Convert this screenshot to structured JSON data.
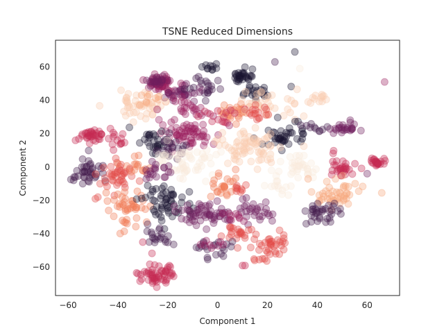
{
  "chart_data": {
    "type": "scatter",
    "title": "TSNE Reduced Dimensions",
    "xlabel": "Component 1",
    "ylabel": "Component 2",
    "xlim": [
      -65,
      73
    ],
    "ylim": [
      -77,
      76
    ],
    "xticks": [
      -60,
      -40,
      -20,
      0,
      20,
      40,
      60
    ],
    "yticks": [
      -60,
      -40,
      -20,
      0,
      20,
      40,
      60
    ],
    "grid": false,
    "legend": "none",
    "marker_opacity": 0.35,
    "colors": [
      "#1a1530",
      "#441e4e",
      "#6f1f5e",
      "#9c1f5e",
      "#c72a52",
      "#e34a48",
      "#f07a55",
      "#f5a57c",
      "#f8cbb0",
      "#faebdd"
    ],
    "clusters": [
      {
        "cx": -23,
        "cy": 51,
        "sx": 3,
        "sy": 2.5,
        "n": 55,
        "color": "#9c1f5e"
      },
      {
        "cx": -24,
        "cy": 51,
        "sx": 2,
        "sy": 1.5,
        "n": 20,
        "color": "#6f1f5e"
      },
      {
        "cx": -15,
        "cy": 45,
        "sx": 4,
        "sy": 3,
        "n": 30,
        "color": "#6f1f5e"
      },
      {
        "cx": -5,
        "cy": 48,
        "sx": 4,
        "sy": 4,
        "n": 20,
        "color": "#441e4e"
      },
      {
        "cx": -3,
        "cy": 60,
        "sx": 2,
        "sy": 1,
        "n": 10,
        "color": "#1a1530"
      },
      {
        "cx": 10,
        "cy": 54,
        "sx": 2.5,
        "sy": 2,
        "n": 30,
        "color": "#1a1530"
      },
      {
        "cx": 16,
        "cy": 45,
        "sx": 4,
        "sy": 3,
        "n": 20,
        "color": "#1a1530"
      },
      {
        "cx": -30,
        "cy": 38,
        "sx": 5,
        "sy": 5,
        "n": 45,
        "color": "#f8cbb0"
      },
      {
        "cx": -27,
        "cy": 40,
        "sx": 3,
        "sy": 3,
        "n": 10,
        "color": "#f5a57c"
      },
      {
        "cx": -12,
        "cy": 35,
        "sx": 5,
        "sy": 4,
        "n": 25,
        "color": "#9c1f5e"
      },
      {
        "cx": 7,
        "cy": 33,
        "sx": 3,
        "sy": 3,
        "n": 25,
        "color": "#f07a55"
      },
      {
        "cx": 2,
        "cy": 30,
        "sx": 4,
        "sy": 3,
        "n": 15,
        "color": "#c72a52"
      },
      {
        "cx": 22,
        "cy": 37,
        "sx": 5,
        "sy": 5,
        "n": 35,
        "color": "#f8cbb0"
      },
      {
        "cx": 16,
        "cy": 33,
        "sx": 3,
        "sy": 3,
        "n": 15,
        "color": "#e34a48"
      },
      {
        "cx": 40,
        "cy": 40,
        "sx": 2,
        "sy": 2,
        "n": 12,
        "color": "#f8cbb0"
      },
      {
        "cx": -12,
        "cy": 19,
        "sx": 6,
        "sy": 4,
        "n": 60,
        "color": "#9c1f5e"
      },
      {
        "cx": -25,
        "cy": 15,
        "sx": 4,
        "sy": 4,
        "n": 30,
        "color": "#1a1530"
      },
      {
        "cx": -20,
        "cy": 12,
        "sx": 3,
        "sy": 3,
        "n": 20,
        "color": "#441e4e"
      },
      {
        "cx": -50,
        "cy": 20,
        "sx": 3.5,
        "sy": 2.5,
        "n": 35,
        "color": "#c72a52"
      },
      {
        "cx": -40,
        "cy": 15,
        "sx": 3,
        "sy": 3,
        "n": 12,
        "color": "#c72a52"
      },
      {
        "cx": 28,
        "cy": 18,
        "sx": 5,
        "sy": 4,
        "n": 40,
        "color": "#1a1530"
      },
      {
        "cx": 52,
        "cy": 24,
        "sx": 3,
        "sy": 2,
        "n": 25,
        "color": "#6f1f5e"
      },
      {
        "cx": 40,
        "cy": 23,
        "sx": 3,
        "sy": 2,
        "n": 10,
        "color": "#441e4e"
      },
      {
        "cx": 12,
        "cy": 12,
        "sx": 6,
        "sy": 6,
        "n": 70,
        "color": "#f8cbb0"
      },
      {
        "cx": -12,
        "cy": 3,
        "sx": 7,
        "sy": 5,
        "n": 55,
        "color": "#faebdd"
      },
      {
        "cx": 33,
        "cy": 0,
        "sx": 6,
        "sy": 4,
        "n": 35,
        "color": "#faebdd"
      },
      {
        "cx": 25,
        "cy": -12,
        "sx": 3,
        "sy": 3,
        "n": 12,
        "color": "#faebdd"
      },
      {
        "cx": -52,
        "cy": -3,
        "sx": 3.5,
        "sy": 4,
        "n": 40,
        "color": "#441e4e"
      },
      {
        "cx": -40,
        "cy": -5,
        "sx": 4,
        "sy": 5,
        "n": 40,
        "color": "#e34a48"
      },
      {
        "cx": -33,
        "cy": 0,
        "sx": 3,
        "sy": 3,
        "n": 15,
        "color": "#f07a55"
      },
      {
        "cx": -25,
        "cy": -3,
        "sx": 3,
        "sy": 3,
        "n": 20,
        "color": "#6f1f5e"
      },
      {
        "cx": -37,
        "cy": -25,
        "sx": 4,
        "sy": 6,
        "n": 45,
        "color": "#f07a55"
      },
      {
        "cx": -20,
        "cy": -22,
        "sx": 5,
        "sy": 6,
        "n": 55,
        "color": "#1a1530"
      },
      {
        "cx": 2,
        "cy": -12,
        "sx": 3,
        "sy": 4,
        "n": 25,
        "color": "#f07a55"
      },
      {
        "cx": 10,
        "cy": -13,
        "sx": 2,
        "sy": 2,
        "n": 8,
        "color": "#e34a48"
      },
      {
        "cx": 50,
        "cy": 0,
        "sx": 3,
        "sy": 3,
        "n": 30,
        "color": "#c72a52"
      },
      {
        "cx": 64,
        "cy": 3,
        "sx": 1.5,
        "sy": 1.2,
        "n": 25,
        "color": "#c72a52"
      },
      {
        "cx": 47,
        "cy": -17,
        "sx": 5,
        "sy": 4,
        "n": 45,
        "color": "#f5a57c"
      },
      {
        "cx": 42,
        "cy": -28,
        "sx": 4,
        "sy": 3,
        "n": 35,
        "color": "#441e4e"
      },
      {
        "cx": -5,
        "cy": -28,
        "sx": 5,
        "sy": 4,
        "n": 55,
        "color": "#6f1f5e"
      },
      {
        "cx": 15,
        "cy": -27,
        "sx": 5,
        "sy": 4,
        "n": 30,
        "color": "#6f1f5e"
      },
      {
        "cx": 10,
        "cy": -40,
        "sx": 4,
        "sy": 3,
        "n": 20,
        "color": "#e34a48"
      },
      {
        "cx": 22,
        "cy": -47,
        "sx": 4,
        "sy": 4,
        "n": 40,
        "color": "#e34a48"
      },
      {
        "cx": -24,
        "cy": -42,
        "sx": 2.5,
        "sy": 2.5,
        "n": 20,
        "color": "#441e4e"
      },
      {
        "cx": -2,
        "cy": -50,
        "sx": 3,
        "sy": 3,
        "n": 20,
        "color": "#441e4e"
      },
      {
        "cx": -3,
        "cy": -47,
        "sx": 3,
        "sy": 2,
        "n": 8,
        "color": "#9c1f5e"
      },
      {
        "cx": -25,
        "cy": -64,
        "sx": 4,
        "sy": 3,
        "n": 55,
        "color": "#c72a52"
      },
      {
        "cx": 7,
        "cy": -30,
        "sx": 2,
        "sy": 2,
        "n": 10,
        "color": "#9c1f5e"
      }
    ],
    "points": [
      {
        "x": 31,
        "y": 69,
        "color": "#1a1530"
      },
      {
        "x": 33,
        "y": 59,
        "color": "#faebdd"
      },
      {
        "x": 67,
        "y": 51,
        "color": "#9c1f5e"
      },
      {
        "x": 23,
        "y": 63,
        "color": "#441e4e"
      },
      {
        "x": 10,
        "y": -59,
        "color": "#c72a52"
      },
      {
        "x": 11,
        "y": -59,
        "color": "#c72a52"
      },
      {
        "x": -30,
        "y": -45,
        "color": "#c72a52"
      },
      {
        "x": -48,
        "y": -18,
        "color": "#e34a48"
      },
      {
        "x": -49,
        "y": -19,
        "color": "#e34a48"
      },
      {
        "x": 60,
        "y": -4,
        "color": "#6f1f5e"
      },
      {
        "x": -57,
        "y": 16,
        "color": "#c72a52"
      }
    ]
  }
}
